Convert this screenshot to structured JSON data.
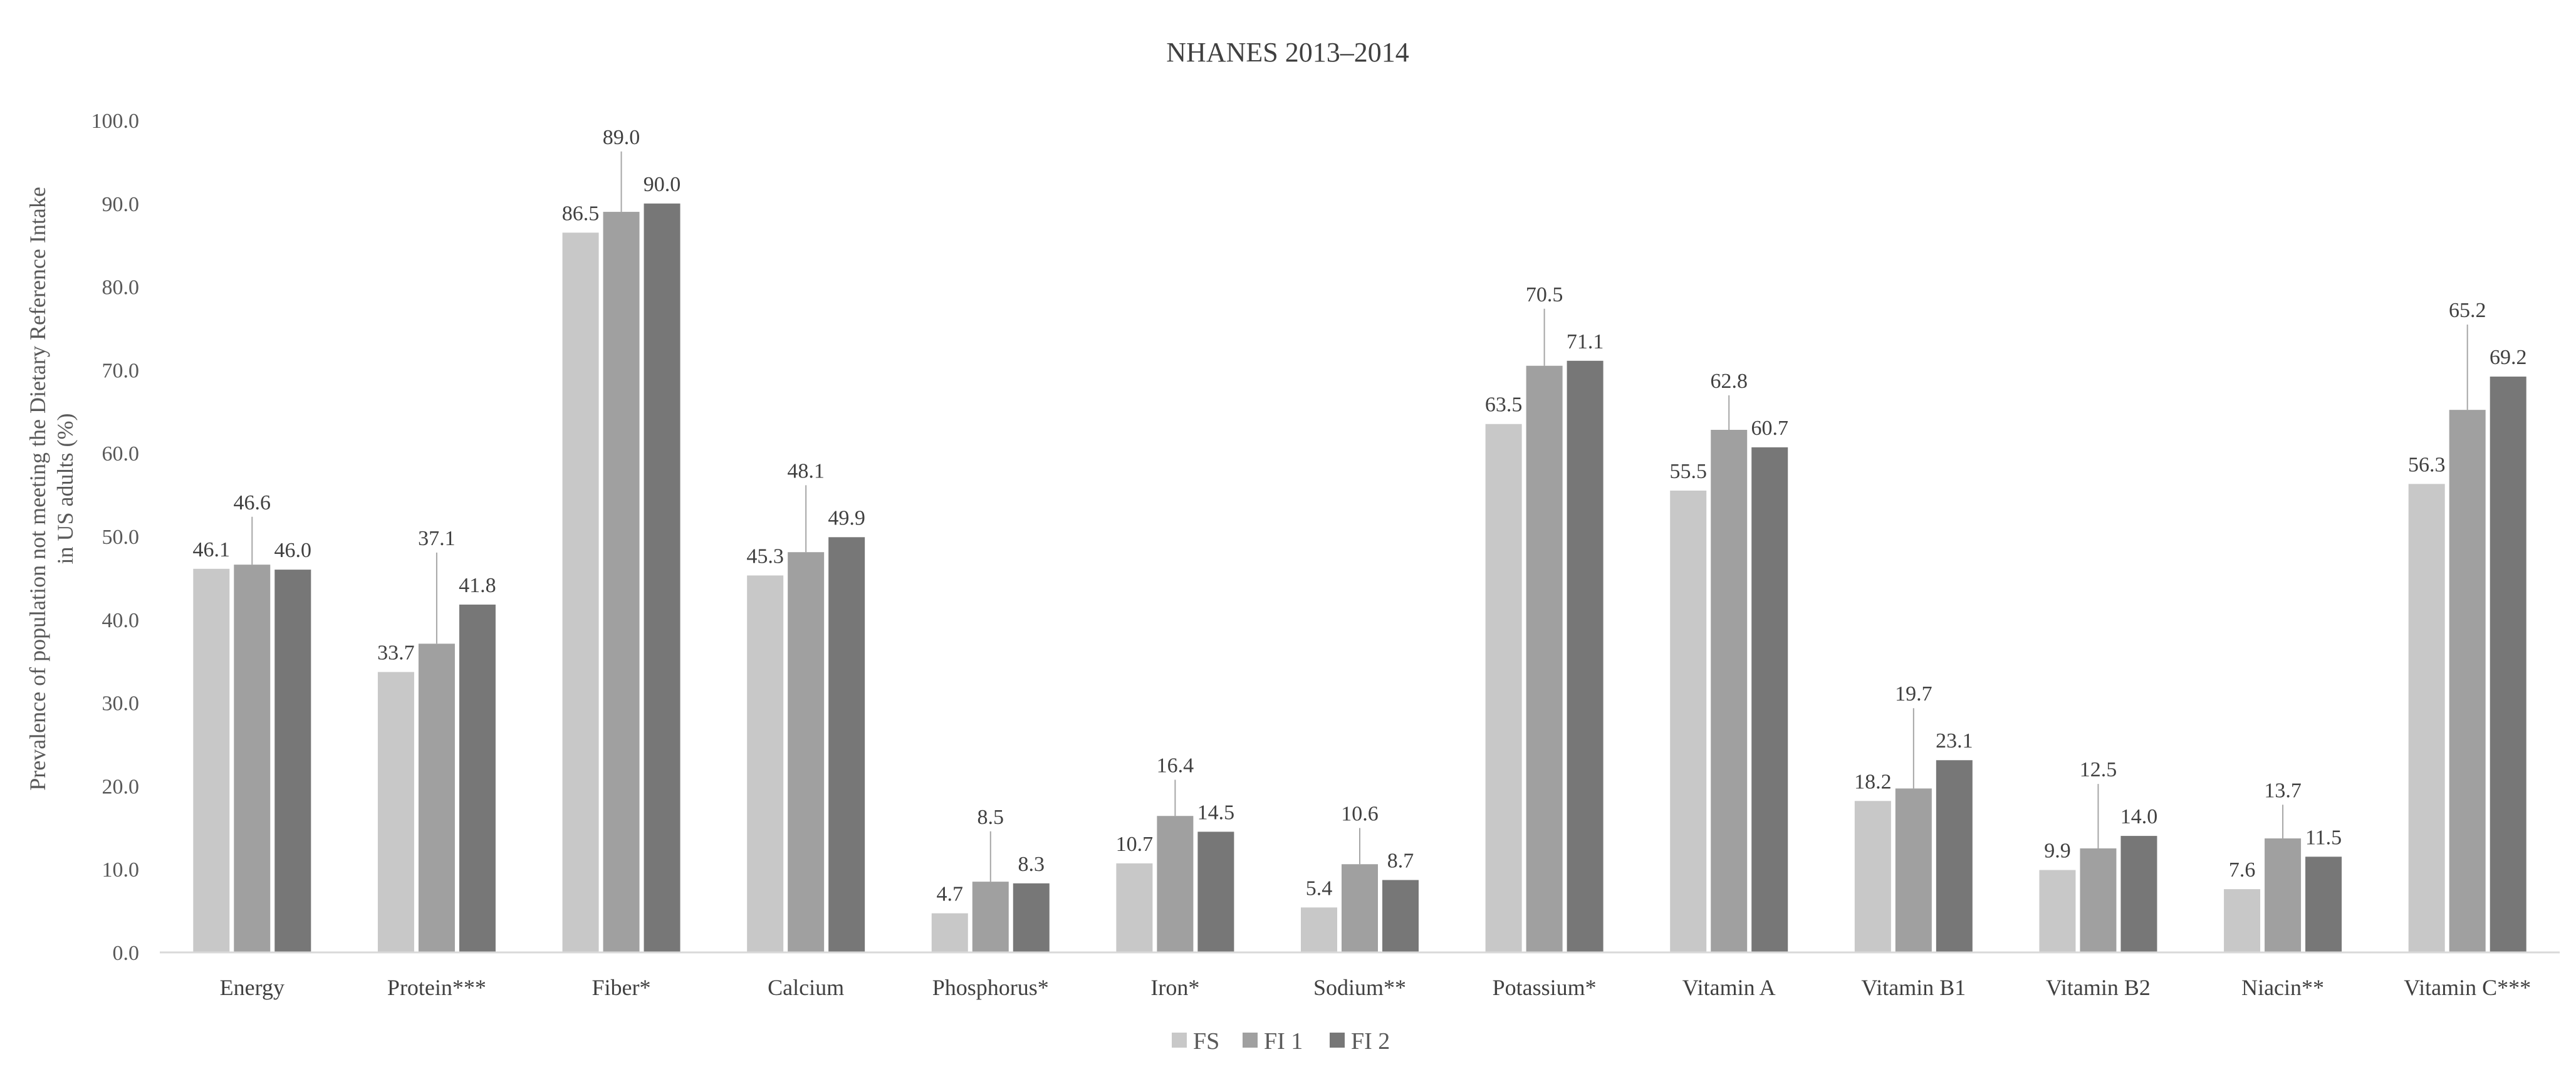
{
  "chart_data": {
    "type": "bar",
    "title": "NHANES 2013–2014",
    "xlabel": "",
    "ylabel": "Prevalence of population not meeting the Dietary Reference Intake in US adults (%)",
    "ylabel_lines": [
      "Prevalence of population not meeting the Dietary Reference Intake",
      "in US adults (%)"
    ],
    "ylim": [
      0,
      100
    ],
    "yticks": [
      "0.0",
      "10.0",
      "20.0",
      "30.0",
      "40.0",
      "50.0",
      "60.0",
      "70.0",
      "80.0",
      "90.0",
      "100.0"
    ],
    "grid": false,
    "legend_position": "bottom",
    "categories": [
      "Energy",
      "Protein***",
      "Fiber*",
      "Calcium",
      "Phosphorus*",
      "Iron*",
      "Sodium**",
      "Potassium*",
      "Vitamin A",
      "Vitamin B1",
      "Vitamin B2",
      "Niacin**",
      "Vitamin C***"
    ],
    "series": [
      {
        "name": "FS",
        "color": "#c8c8c8",
        "values": [
          46.1,
          33.7,
          86.5,
          45.3,
          4.7,
          10.7,
          5.4,
          63.5,
          55.5,
          18.2,
          9.9,
          7.6,
          56.3
        ],
        "labels": [
          "46.1",
          "33.7",
          "86.5",
          "45.3",
          "4.7",
          "10.7",
          "5.4",
          "63.5",
          "55.5",
          "18.2",
          "9.9",
          "7.6",
          "56.3"
        ]
      },
      {
        "name": "FI 1",
        "color": "#a0a0a0",
        "values": [
          46.6,
          37.1,
          89.0,
          48.1,
          8.5,
          16.4,
          10.6,
          70.5,
          62.8,
          19.7,
          12.5,
          13.7,
          65.2
        ],
        "labels": [
          "46.6",
          "37.1",
          "89.0",
          "48.1",
          "8.5",
          "16.4",
          "10.6",
          "70.5",
          "62.8",
          "19.7",
          "12.5",
          "13.7",
          "65.2"
        ]
      },
      {
        "name": "FI 2",
        "color": "#777777",
        "values": [
          46.0,
          41.8,
          90.0,
          49.9,
          8.3,
          14.5,
          8.7,
          71.1,
          60.7,
          23.1,
          14.0,
          11.5,
          69.2
        ],
        "labels": [
          "46.0",
          "41.8",
          "90.0",
          "49.9",
          "8.3",
          "14.5",
          "8.7",
          "71.1",
          "60.7",
          "23.1",
          "14.0",
          "11.5",
          "69.2"
        ]
      }
    ]
  }
}
